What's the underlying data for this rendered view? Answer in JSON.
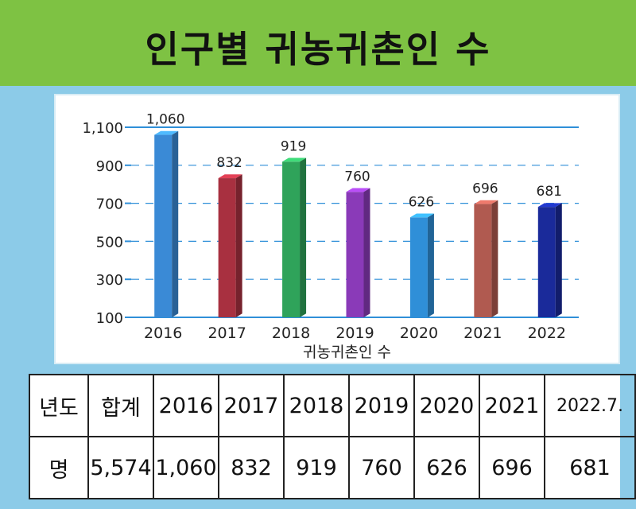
{
  "title": "인구별 귀농귀촌인 수",
  "chart_data": {
    "type": "bar",
    "categories": [
      "2016",
      "2017",
      "2018",
      "2019",
      "2020",
      "2021",
      "2022"
    ],
    "values": [
      1060,
      832,
      919,
      760,
      626,
      696,
      681
    ],
    "value_labels": [
      "1,060",
      "832",
      "919",
      "760",
      "626",
      "696",
      "681"
    ],
    "xlabel": "귀농귀촌인 수",
    "ylabel": "",
    "yticks": [
      "100",
      "300",
      "500",
      "700",
      "900",
      "1,100"
    ],
    "ylim": [
      100,
      1100
    ],
    "grid": true,
    "colors": [
      "#3a8ad6",
      "#a83040",
      "#2fa35a",
      "#8a3ab8",
      "#2f8fd8",
      "#b05a50",
      "#1a2a9a"
    ]
  },
  "table": {
    "header": [
      "년도",
      "합계",
      "2016",
      "2017",
      "2018",
      "2019",
      "2020",
      "2021",
      "2022.7."
    ],
    "row": [
      "명",
      "5,574",
      "1,060",
      "832",
      "919",
      "760",
      "626",
      "696",
      "681"
    ]
  }
}
